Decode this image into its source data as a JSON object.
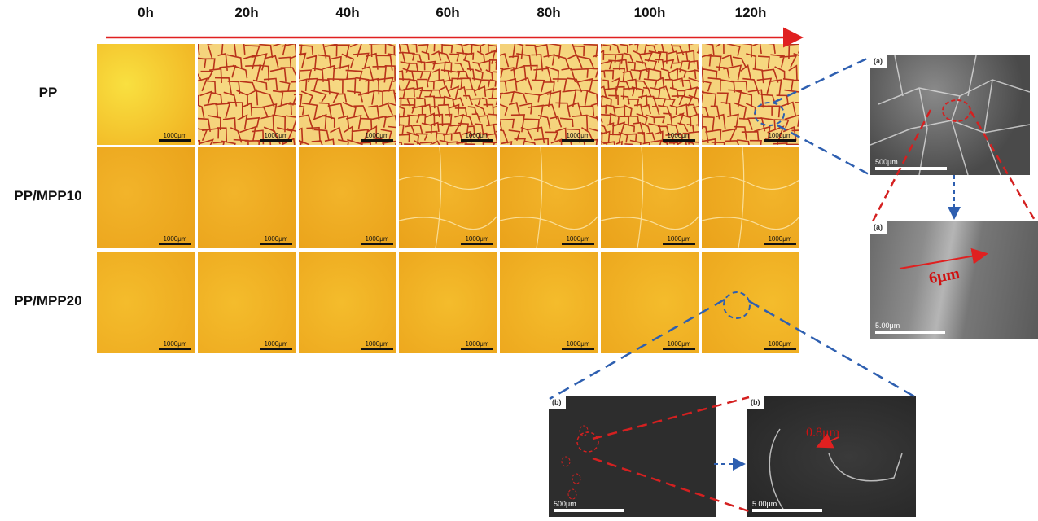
{
  "columns": [
    "0h",
    "20h",
    "40h",
    "60h",
    "80h",
    "100h",
    "120h"
  ],
  "rows": [
    {
      "label": "PP",
      "cracked": [
        false,
        true,
        true,
        true,
        true,
        true,
        true
      ]
    },
    {
      "label": "PP/MPP10",
      "cracked": [
        false,
        false,
        false,
        false,
        false,
        false,
        false
      ]
    },
    {
      "label": "PP/MPP20",
      "cracked": [
        false,
        false,
        false,
        false,
        false,
        false,
        false
      ]
    }
  ],
  "micrograph_scale": "1000μm",
  "sem": {
    "a_low": {
      "tag": "(a)",
      "scale": "500μm"
    },
    "a_high": {
      "tag": "(a)",
      "scale": "5.00μm",
      "measure": "6μm"
    },
    "b_low": {
      "tag": "(b)",
      "scale": "500μm"
    },
    "b_high": {
      "tag": "(b)",
      "scale": "5.00μm",
      "measure": "0.8μm"
    }
  },
  "colors": {
    "timeline_arrow": "#e02020",
    "crack": "#b8321a",
    "zoom_blue": "#2e5fb0",
    "zoom_red": "#d42020",
    "sample_base": "#f2b41e"
  }
}
